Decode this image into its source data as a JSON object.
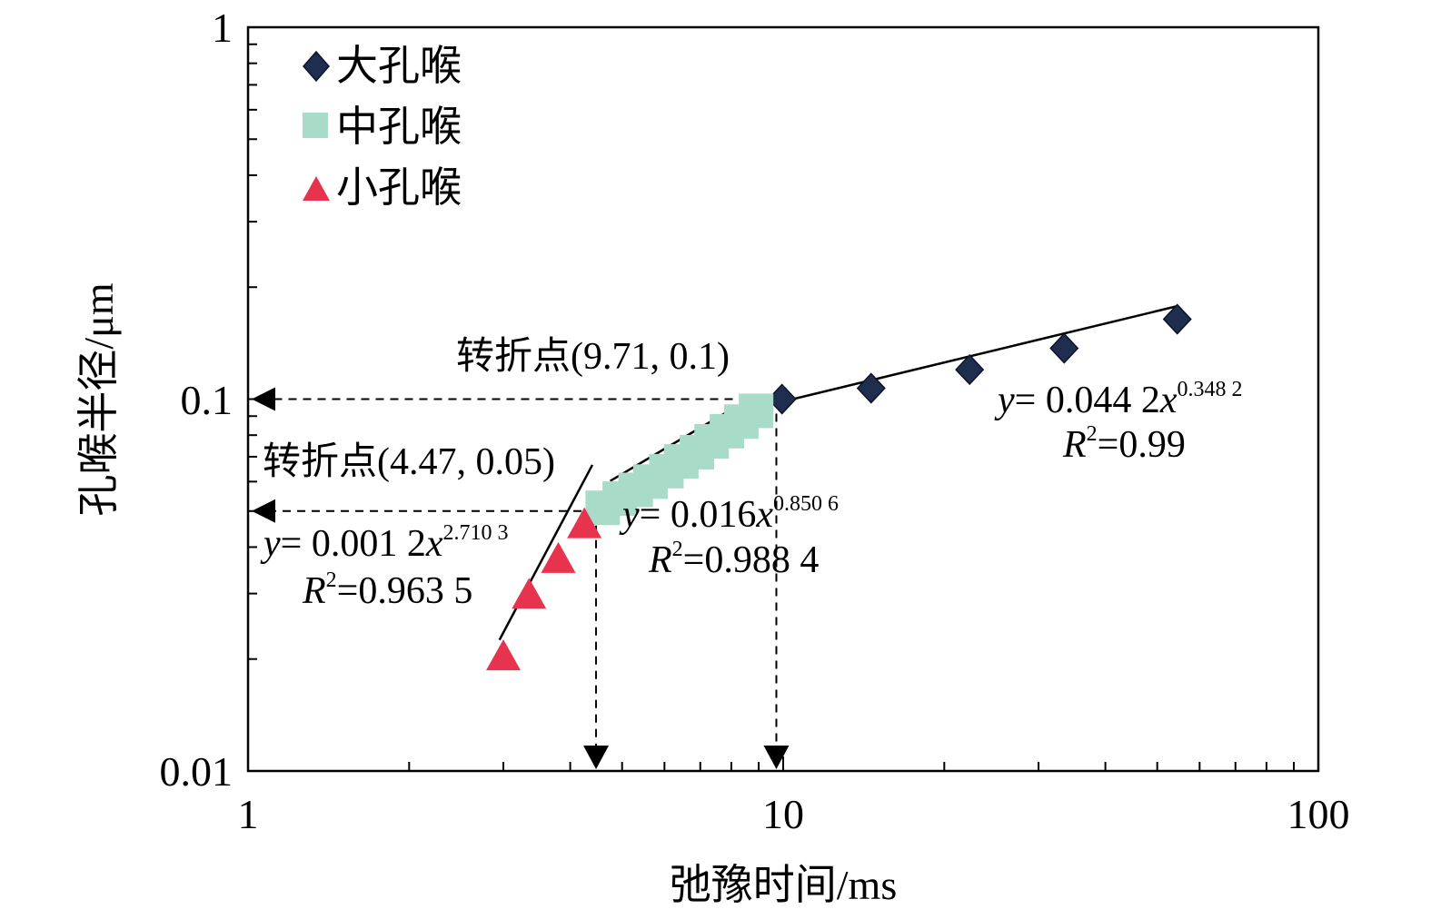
{
  "chart_data": {
    "type": "scatter",
    "xscale": "log",
    "yscale": "log",
    "xlim": [
      1,
      100
    ],
    "ylim": [
      0.01,
      1
    ],
    "xlabel": "弛豫时间/ms",
    "ylabel": "孔喉半径/μm",
    "x_ticks": [
      "1",
      "10",
      "100"
    ],
    "y_ticks": [
      "0.01",
      "0.1",
      "1"
    ],
    "legend_position": "top-left",
    "grid": false,
    "series": [
      {
        "name": "大孔喉",
        "marker": "diamond",
        "color": "#1f2d4f",
        "x": [
          9.95,
          14.6,
          22.3,
          33.5,
          54.5
        ],
        "y": [
          0.1,
          0.107,
          0.12,
          0.137,
          0.164
        ]
      },
      {
        "name": "中孔喉",
        "marker": "square",
        "color": "#a8dcc8",
        "x": [
          4.6,
          4.95,
          5.3,
          5.65,
          6.05,
          6.45,
          6.9,
          7.35,
          7.85,
          8.35,
          8.9
        ],
        "y": [
          0.051,
          0.054,
          0.057,
          0.06,
          0.064,
          0.068,
          0.072,
          0.077,
          0.082,
          0.087,
          0.093
        ]
      },
      {
        "name": "小孔喉",
        "marker": "triangle",
        "color": "#e8334f",
        "x": [
          3.0,
          3.35,
          3.8,
          4.25
        ],
        "y": [
          0.0203,
          0.0297,
          0.0371,
          0.046
        ]
      }
    ],
    "fits": [
      {
        "series": "大孔喉",
        "x_range": [
          9.95,
          54.5
        ],
        "a": 0.0442,
        "b": 0.3482
      },
      {
        "series": "中孔喉",
        "x_range": [
          4.75,
          8.0
        ],
        "a": 0.016,
        "b": 0.8506
      },
      {
        "series": "小孔喉",
        "x_range": [
          2.95,
          4.4
        ],
        "a": 0.0012,
        "b": 2.7103
      }
    ],
    "turning_points": [
      {
        "x": 9.71,
        "y": 0.1,
        "label": "转折点(9.71, 0.1)"
      },
      {
        "x": 4.47,
        "y": 0.05,
        "label": "转折点(4.47, 0.05)"
      }
    ],
    "annotations": {
      "large": {
        "eq_prefix": "y",
        "eq_mid": "= 0.044 2",
        "eq_x": "x",
        "eq_exp": "0.348 2",
        "r2_r": "R",
        "r2_sup": "2",
        "r2_val": "=0.99"
      },
      "medium": {
        "eq_prefix": "y",
        "eq_mid": "= 0.016",
        "eq_x": "x",
        "eq_exp": "0.850 6",
        "r2_r": "R",
        "r2_sup": "2",
        "r2_val": "=0.988 4"
      },
      "small": {
        "eq_prefix": "y",
        "eq_mid": "= 0.001 2",
        "eq_x": "x",
        "eq_exp": "2.710 3",
        "r2_r": "R",
        "r2_sup": "2",
        "r2_val": "=0.963 5"
      }
    }
  }
}
